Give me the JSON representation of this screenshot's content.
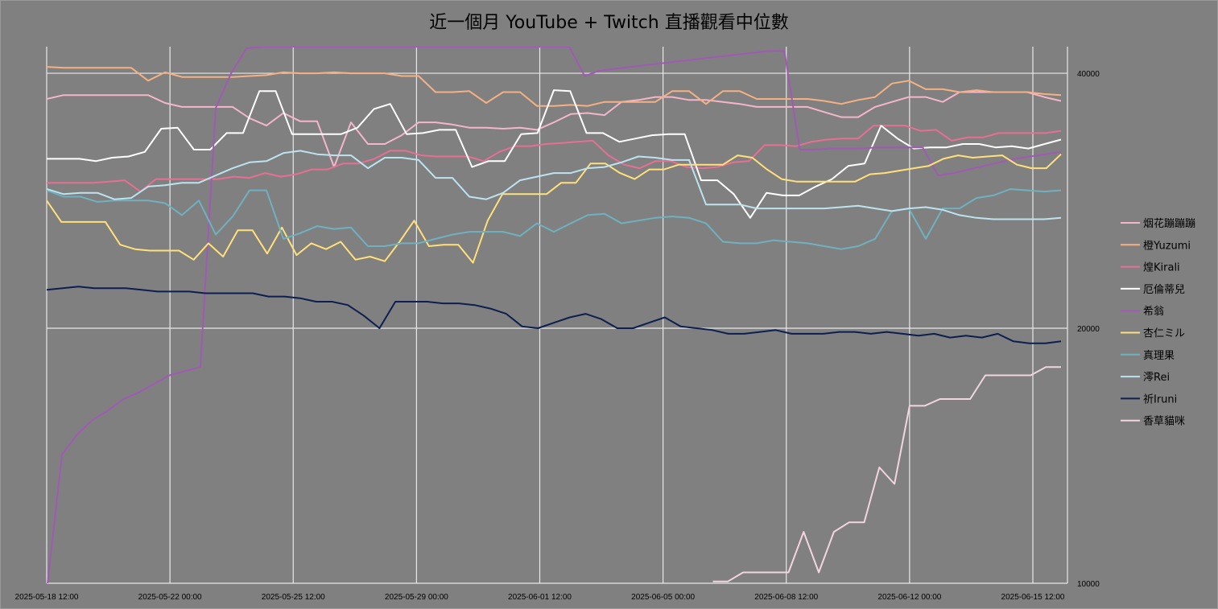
{
  "chart_data": {
    "type": "line",
    "title": "近一個月 YouTube + Twitch 直播觀看中位數",
    "xlabel": "",
    "ylabel": "",
    "x_axis": {
      "start": "2025-05-18 12:00",
      "end": "2025-06-16 12:00",
      "tick_labels": [
        "2025-05-18 12:00",
        "2025-05-22 00:00",
        "2025-05-25 12:00",
        "2025-05-29 00:00",
        "2025-06-01 12:00",
        "2025-06-05 00:00",
        "2025-06-08 12:00",
        "2025-06-12 00:00",
        "2025-06-15 12:00"
      ]
    },
    "y_axis": {
      "scale": "log",
      "range": [
        10000,
        43000
      ],
      "tick_labels": [
        "10000",
        "20000",
        "40000"
      ],
      "tick_values": [
        10000,
        20000,
        40000
      ],
      "side": "right"
    },
    "grid": "on",
    "legend_position": "right",
    "series": [
      {
        "name": "烟花蹦蹦蹦",
        "color": "#f4b6c9",
        "values": [
          37300,
          37700,
          37700,
          37700,
          37700,
          37700,
          37700,
          36900,
          36500,
          36500,
          36500,
          36500,
          35400,
          34700,
          35900,
          35100,
          35100,
          31000,
          35000,
          33000,
          33000,
          33800,
          35000,
          35000,
          34800,
          34500,
          34500,
          34400,
          34500,
          34300,
          35000,
          35800,
          35900,
          35700,
          37000,
          37200,
          37500,
          37500,
          37200,
          37200,
          37000,
          36800,
          36500,
          36500,
          36500,
          36500,
          36000,
          35500,
          35500,
          36500,
          37000,
          37500,
          37500,
          37000,
          38000,
          38000,
          38000,
          38000,
          38000,
          37500,
          37100
        ]
      },
      {
        "name": "橙Yuzumi",
        "color": "#f4b183",
        "values": [
          40700,
          40600,
          40600,
          40600,
          40600,
          40600,
          39200,
          40100,
          39600,
          39600,
          39600,
          39600,
          39700,
          39800,
          40100,
          40000,
          40000,
          40100,
          40000,
          40000,
          40000,
          39700,
          39700,
          38000,
          38000,
          38100,
          36900,
          38000,
          38000,
          36600,
          36600,
          36700,
          36600,
          37000,
          37000,
          37000,
          37000,
          38100,
          38100,
          36800,
          38100,
          38100,
          37300,
          37300,
          37300,
          37300,
          37100,
          36800,
          37200,
          37500,
          38900,
          39200,
          38300,
          38300,
          38000,
          38200,
          38000,
          38000,
          38000,
          37800,
          37700
        ]
      },
      {
        "name": "煌Kirali",
        "color": "#e76f94",
        "values": [
          29700,
          29700,
          29700,
          29700,
          29800,
          29900,
          29000,
          30000,
          30000,
          30000,
          30000,
          30000,
          30200,
          30100,
          30500,
          30200,
          30400,
          30800,
          30800,
          31300,
          31300,
          31700,
          32400,
          32400,
          32000,
          31900,
          31900,
          31900,
          31500,
          32300,
          32800,
          32800,
          33000,
          33100,
          33200,
          33300,
          32000,
          31200,
          30900,
          31500,
          31500,
          31000,
          30900,
          31000,
          31400,
          31500,
          32900,
          32900,
          32800,
          33200,
          33400,
          33500,
          33500,
          34700,
          34700,
          34700,
          34200,
          34300,
          33300,
          33600,
          33600,
          34000,
          34000,
          34000,
          34000,
          34200
        ]
      },
      {
        "name": "厄倫蒂兒",
        "color": "#ffffff",
        "values": [
          31700,
          31700,
          31700,
          31500,
          31800,
          31900,
          32300,
          34400,
          34500,
          32500,
          32500,
          34000,
          34000,
          38100,
          38100,
          33900,
          33900,
          33900,
          33900,
          34500,
          36300,
          36800,
          33900,
          34000,
          34300,
          34300,
          31000,
          31500,
          31500,
          33900,
          34000,
          38200,
          38100,
          34000,
          34000,
          33200,
          33500,
          33800,
          33900,
          33900,
          29900,
          29900,
          28800,
          27000,
          28900,
          28700,
          28700,
          29400,
          30000,
          31100,
          31300,
          34700,
          33500,
          32600,
          32700,
          32700,
          33000,
          33000,
          32700,
          32800,
          32600,
          33000,
          33400
        ]
      },
      {
        "name": "希翁",
        "color": "#a05ab4",
        "values": [
          9800,
          14200,
          15000,
          15600,
          16000,
          16500,
          16800,
          17200,
          17600,
          17800,
          18000,
          36400,
          40000,
          42800,
          43000,
          43000,
          43000,
          43000,
          43000,
          43000,
          43000,
          43000,
          43000,
          43000,
          43000,
          43000,
          43000,
          43000,
          43000,
          43000,
          43000,
          43000,
          43000,
          43000,
          43000,
          39700,
          40300,
          40500,
          40700,
          40900,
          41100,
          41300,
          41500,
          41700,
          41900,
          42100,
          42300,
          42500,
          42500,
          32500,
          32500,
          32600,
          32600,
          32600,
          32700,
          32700,
          32700,
          32700,
          30300,
          30500,
          30800,
          31100,
          31400,
          31700,
          31900,
          32100,
          32300
        ]
      },
      {
        "name": "杏仁ミル",
        "color": "#ffe07a",
        "values": [
          28300,
          26700,
          26700,
          26700,
          26700,
          25100,
          24800,
          24700,
          24700,
          24700,
          24100,
          25200,
          24300,
          26100,
          26100,
          24500,
          26300,
          24400,
          25200,
          24800,
          25300,
          24100,
          24300,
          24000,
          25300,
          26800,
          25000,
          25100,
          25100,
          23900,
          26800,
          28800,
          28800,
          28800,
          28800,
          29700,
          29700,
          31300,
          31300,
          30500,
          30000,
          30800,
          30800,
          31200,
          31200,
          31200,
          31200,
          32000,
          31800,
          30800,
          30000,
          29800,
          29800,
          29800,
          29800,
          29800,
          30400,
          30500,
          30700,
          30900,
          31100,
          31700,
          32000,
          31800,
          31900,
          32000,
          31200,
          30900,
          30900,
          32100
        ]
      },
      {
        "name": "真理果",
        "color": "#6fb1be",
        "values": [
          29100,
          28600,
          28600,
          28200,
          28300,
          28300,
          28300,
          28100,
          27200,
          28300,
          25800,
          27100,
          29100,
          29100,
          25500,
          25900,
          26400,
          26200,
          26300,
          25000,
          25000,
          25200,
          25200,
          25500,
          25800,
          26000,
          26000,
          26000,
          25700,
          26600,
          26000,
          26600,
          27200,
          27300,
          26600,
          26800,
          27000,
          27100,
          27000,
          26600,
          25300,
          25200,
          25200,
          25400,
          25300,
          25200,
          25000,
          24800,
          25000,
          25500,
          27500,
          27700,
          25500,
          27700,
          27700,
          28500,
          28700,
          29200,
          29100,
          29000,
          29100
        ]
      },
      {
        "name": "澪Rei",
        "color": "#bde3ef",
        "values": [
          29200,
          28800,
          28900,
          28900,
          28400,
          28500,
          29400,
          29500,
          29700,
          29700,
          30300,
          30900,
          31400,
          31500,
          32200,
          32400,
          32100,
          32000,
          32000,
          30900,
          31800,
          31800,
          31600,
          30100,
          30100,
          28600,
          28400,
          28900,
          29900,
          30200,
          30500,
          30500,
          30900,
          31000,
          31400,
          31900,
          31800,
          31600,
          31600,
          28000,
          28000,
          28000,
          27700,
          27700,
          27700,
          27700,
          27700,
          27800,
          27900,
          27700,
          27500,
          27700,
          27800,
          27600,
          27200,
          27000,
          26900,
          26900,
          26900,
          26900,
          27000
        ]
      },
      {
        "name": "祈Iruni",
        "color": "#0c1f4f",
        "values": [
          22200,
          22300,
          22400,
          22300,
          22300,
          22300,
          22200,
          22100,
          22100,
          22100,
          22000,
          22000,
          22000,
          22000,
          21800,
          21800,
          21700,
          21500,
          21500,
          21300,
          20700,
          20000,
          21500,
          21500,
          21500,
          21400,
          21400,
          21300,
          21100,
          20800,
          20100,
          20000,
          20300,
          20600,
          20800,
          20500,
          20000,
          20000,
          20300,
          20600,
          20100,
          20000,
          19900,
          19700,
          19700,
          19800,
          19900,
          19700,
          19700,
          19700,
          19800,
          19800,
          19700,
          19800,
          19700,
          19600,
          19700,
          19500,
          19600,
          19500,
          19700,
          19300,
          19200,
          19200,
          19300
        ]
      },
      {
        "name": "香草貓咪",
        "color": "#f2d6de",
        "values": [
          null,
          null,
          null,
          null,
          null,
          null,
          null,
          null,
          null,
          null,
          null,
          null,
          null,
          null,
          null,
          null,
          null,
          null,
          null,
          null,
          null,
          null,
          null,
          null,
          null,
          null,
          null,
          null,
          null,
          null,
          null,
          null,
          null,
          null,
          null,
          null,
          null,
          null,
          null,
          null,
          null,
          null,
          null,
          null,
          10050,
          10050,
          10300,
          10300,
          10300,
          10300,
          11500,
          10300,
          11500,
          11800,
          11800,
          13700,
          13100,
          16200,
          16200,
          16500,
          16500,
          16500,
          17600,
          17600,
          17600,
          17600,
          18000,
          18000
        ]
      }
    ]
  }
}
